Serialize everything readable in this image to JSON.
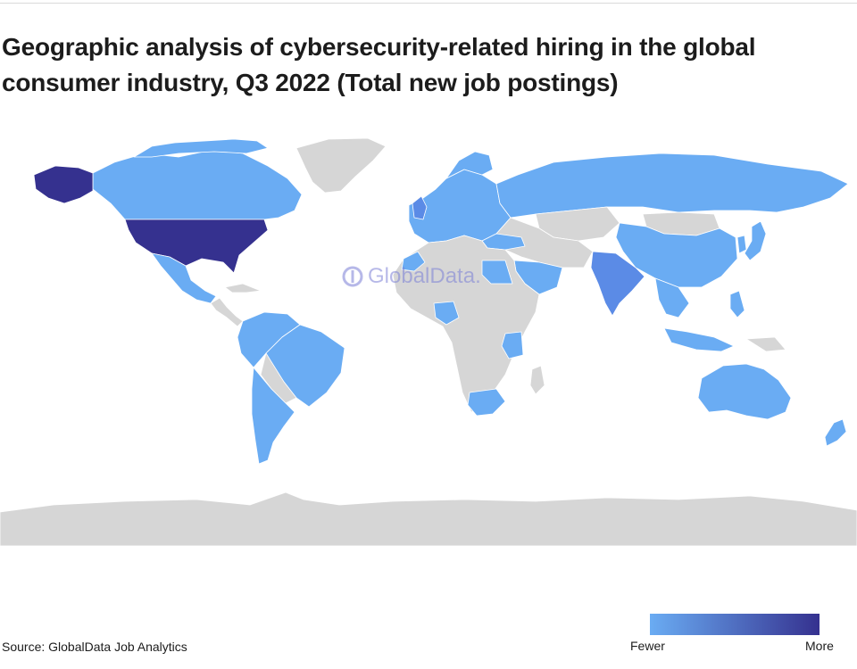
{
  "title": "Geographic analysis of cybersecurity-related hiring in the global consumer industry, Q3 2022 (Total new job postings)",
  "watermark": "GlobalData.",
  "source": "Source: GlobalData Job Analytics",
  "legend": {
    "low_label": "Fewer",
    "high_label": "More",
    "low_color": "#6aacf3",
    "high_color": "#35318f"
  },
  "colors": {
    "no_data": "#d6d6d6",
    "fewer": "#6aacf3",
    "mid": "#5b8be6",
    "more": "#35318f"
  },
  "regions": [
    {
      "name": "USA",
      "level": "more"
    },
    {
      "name": "Alaska",
      "level": "more"
    },
    {
      "name": "India",
      "level": "mid"
    },
    {
      "name": "Canada",
      "level": "fewer"
    },
    {
      "name": "Mexico",
      "level": "fewer"
    },
    {
      "name": "Brazil",
      "level": "fewer"
    },
    {
      "name": "Argentina",
      "level": "fewer"
    },
    {
      "name": "Russia",
      "level": "fewer"
    },
    {
      "name": "China",
      "level": "fewer"
    },
    {
      "name": "Australia",
      "level": "fewer"
    },
    {
      "name": "Europe",
      "level": "fewer"
    },
    {
      "name": "South Africa",
      "level": "fewer"
    },
    {
      "name": "Saudi Arabia",
      "level": "fewer"
    },
    {
      "name": "Egypt",
      "level": "fewer"
    },
    {
      "name": "Nigeria",
      "level": "fewer"
    },
    {
      "name": "Kenya",
      "level": "fewer"
    },
    {
      "name": "Japan",
      "level": "fewer"
    },
    {
      "name": "Southeast Asia",
      "level": "fewer"
    },
    {
      "name": "New Zealand",
      "level": "fewer"
    },
    {
      "name": "Greenland",
      "level": "no_data"
    },
    {
      "name": "Antarctica",
      "level": "no_data"
    }
  ]
}
